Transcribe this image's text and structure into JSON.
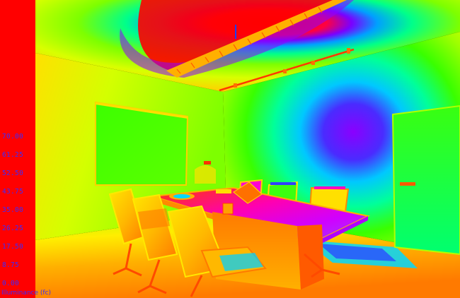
{
  "legend": {
    "ticks": [
      "70.00",
      "61.25",
      "52.50",
      "43.75",
      "35.00",
      "26.25",
      "17.50",
      "8.75",
      "0.00"
    ],
    "units": "Illuminance (fc)",
    "scale_colors": [
      "#ff0000",
      "#ff6a00",
      "#ffd500",
      "#c8ff00",
      "#3cff00",
      "#00ff6e",
      "#00e0ff",
      "#3a5cff",
      "#8a00ff",
      "#ff00ff"
    ],
    "tick_color": "#3a2bff"
  },
  "scene": {
    "subject": "false-color illuminance rendering of a conference room",
    "palette": {
      "hot": "#ff1a00",
      "warm": "#ffb400",
      "mid": "#b8ff00",
      "green": "#31ff17",
      "cool": "#00f0ff",
      "blue": "#3a2bff",
      "violet": "#9b00ff",
      "magenta": "#ff00e6",
      "orange": "#ff7a00",
      "yellow": "#ffee00"
    }
  }
}
